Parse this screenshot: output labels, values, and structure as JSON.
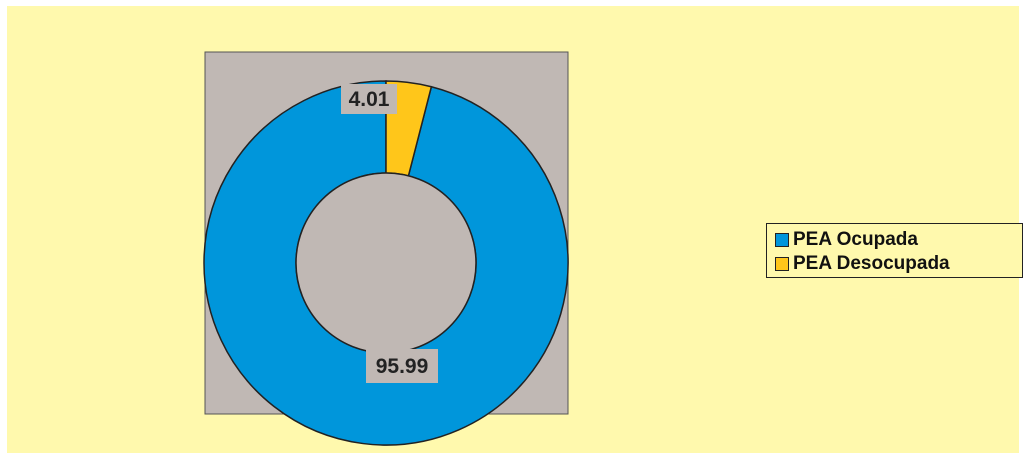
{
  "chart_data": {
    "type": "pie",
    "variant": "donut",
    "categories": [
      "PEA Ocupada",
      "PEA Desocupada"
    ],
    "values": [
      95.99,
      4.01
    ],
    "data_labels": [
      "95.99",
      "4.01"
    ],
    "colors": [
      "#0096db",
      "#ffc61a"
    ],
    "plot_background": "#c0b8b4",
    "chart_background": "#fff9ad",
    "title": "",
    "legend_position": "right"
  }
}
